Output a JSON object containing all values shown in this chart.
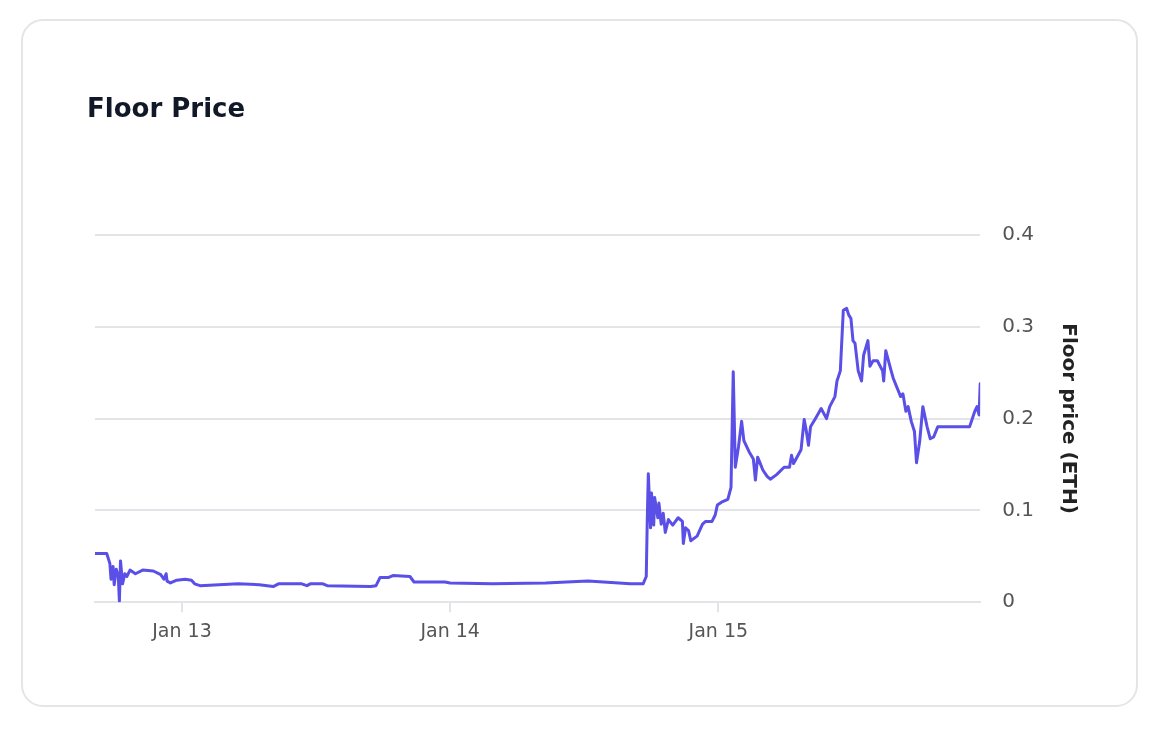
{
  "chart_data": {
    "type": "line",
    "title": "Floor Price",
    "ylabel": "Floor price (ETH)",
    "x": [
      "--01-12T16:13",
      "--01-12T17:16",
      "--01-12T17:33",
      "--01-12T17:39",
      "--01-12T17:50",
      "--01-12T17:56",
      "--01-12T18:07",
      "--01-12T18:18",
      "--01-12T18:24",
      "--01-12T18:30",
      "--01-12T18:41",
      "--01-12T18:53",
      "--01-12T19:04",
      "--01-12T19:21",
      "--01-12T19:50",
      "--01-12T20:29",
      "--01-12T21:26",
      "--01-12T22:06",
      "--01-12T22:23",
      "--01-12T22:35",
      "--01-12T22:40",
      "--01-12T22:58",
      "--01-12T23:32",
      "--01-13T00:17",
      "--01-13T00:51",
      "--01-13T01:08",
      "--01-13T01:37",
      "--01-13T05:02",
      "--01-13T06:55",
      "--01-13T08:10",
      "--01-13T08:38",
      "--01-13T10:43",
      "--01-13T11:11",
      "--01-13T11:29",
      "--01-13T12:37",
      "--01-13T13:00",
      "--01-13T16:53",
      "--01-13T17:22",
      "--01-13T17:44",
      "--01-13T18:30",
      "--01-13T18:53",
      "--01-13T20:24",
      "--01-13T20:46",
      "--01-13T23:32",
      "--01-14T00:00",
      "--01-14T03:47",
      "--01-14T08:32",
      "--01-14T12:20",
      "--01-14T16:08",
      "--01-14T17:16",
      "--01-14T17:33",
      "--01-14T17:38",
      "--01-14T17:44",
      "--01-14T17:56",
      "--01-14T18:01",
      "--01-14T18:13",
      "--01-14T18:18",
      "--01-14T18:35",
      "--01-14T18:41",
      "--01-14T18:53",
      "--01-14T19:04",
      "--01-14T19:15",
      "--01-14T19:32",
      "--01-14T19:55",
      "--01-14T20:24",
      "--01-14T20:47",
      "--01-14T20:52",
      "--01-14T21:04",
      "--01-14T21:20",
      "--01-14T21:32",
      "--01-14T22:06",
      "--01-14T22:35",
      "--01-14T22:52",
      "--01-14T23:26",
      "--01-14T23:43",
      "--01-14T23:55",
      "--01-15T00:17",
      "--01-15T00:51",
      "--01-15T01:08",
      "--01-15T01:20",
      "--01-15T01:31",
      "--01-15T01:48",
      "--01-15T02:05",
      "--01-15T02:17",
      "--01-15T02:45",
      "--01-15T03:08",
      "--01-15T03:19",
      "--01-15T03:31",
      "--01-15T03:59",
      "--01-15T04:22",
      "--01-15T04:39",
      "--01-15T05:13",
      "--01-15T05:53",
      "--01-15T06:22",
      "--01-15T06:33",
      "--01-15T06:44",
      "--01-15T07:24",
      "--01-15T07:41",
      "--01-15T07:52",
      "--01-15T08:04",
      "--01-15T08:15",
      "--01-15T08:44",
      "--01-15T09:12",
      "--01-15T09:41",
      "--01-15T09:58",
      "--01-15T10:26",
      "--01-15T10:37",
      "--01-15T10:55",
      "--01-15T11:11",
      "--01-15T11:29",
      "--01-15T11:40",
      "--01-15T11:52",
      "--01-15T12:03",
      "--01-15T12:14",
      "--01-15T12:31",
      "--01-15T12:49",
      "--01-15T13:00",
      "--01-15T13:23",
      "--01-15T13:34",
      "--01-15T13:51",
      "--01-15T14:14",
      "--01-15T14:42",
      "--01-15T14:48",
      "--01-15T14:59",
      "--01-15T15:28",
      "--01-15T15:39",
      "--01-15T16:19",
      "--01-15T16:31",
      "--01-15T16:47",
      "--01-15T16:59",
      "--01-15T17:16",
      "--01-15T17:33",
      "--01-15T17:44",
      "--01-15T18:01",
      "--01-15T18:18",
      "--01-15T18:41",
      "--01-15T18:58",
      "--01-15T19:16",
      "--01-15T19:38",
      "--01-15T22:29",
      "--01-15T22:57",
      "--01-15T23:09",
      "--01-15T23:20",
      "--01-15T23:26"
    ],
    "series": [
      {
        "color": "#5a4fe6",
        "values": [
          0.053,
          0.053,
          0.042,
          0.025,
          0.039,
          0.019,
          0.036,
          0.028,
          0.001,
          0.045,
          0.02,
          0.031,
          0.028,
          0.035,
          0.031,
          0.035,
          0.034,
          0.03,
          0.025,
          0.031,
          0.023,
          0.021,
          0.024,
          0.025,
          0.024,
          0.02,
          0.018,
          0.02,
          0.019,
          0.017,
          0.02,
          0.02,
          0.018,
          0.02,
          0.02,
          0.018,
          0.017,
          0.018,
          0.027,
          0.027,
          0.029,
          0.028,
          0.022,
          0.022,
          0.021,
          0.02,
          0.021,
          0.023,
          0.02,
          0.02,
          0.028,
          0.086,
          0.14,
          0.081,
          0.119,
          0.084,
          0.114,
          0.092,
          0.108,
          0.085,
          0.097,
          0.076,
          0.09,
          0.084,
          0.092,
          0.088,
          0.064,
          0.081,
          0.078,
          0.067,
          0.072,
          0.085,
          0.088,
          0.088,
          0.095,
          0.106,
          0.109,
          0.112,
          0.125,
          0.251,
          0.147,
          0.169,
          0.197,
          0.176,
          0.164,
          0.156,
          0.133,
          0.158,
          0.144,
          0.137,
          0.134,
          0.139,
          0.147,
          0.147,
          0.16,
          0.151,
          0.166,
          0.199,
          0.187,
          0.171,
          0.191,
          0.201,
          0.211,
          0.2,
          0.213,
          0.224,
          0.241,
          0.252,
          0.318,
          0.32,
          0.313,
          0.309,
          0.285,
          0.282,
          0.252,
          0.241,
          0.269,
          0.285,
          0.257,
          0.263,
          0.263,
          0.252,
          0.241,
          0.274,
          0.252,
          0.244,
          0.224,
          0.227,
          0.208,
          0.213,
          0.197,
          0.186,
          0.152,
          0.175,
          0.213,
          0.191,
          0.178,
          0.18,
          0.191,
          0.191,
          0.208,
          0.213,
          0.204,
          0.238
        ]
      }
    ],
    "xlim": [
      "--01-12T16:13",
      "--01-15T23:26"
    ],
    "xticks": [
      {
        "value": "--01-13",
        "label": "Jan 13"
      },
      {
        "value": "--01-14",
        "label": "Jan 14"
      },
      {
        "value": "--01-15",
        "label": "Jan 15"
      }
    ],
    "ylim": [
      0,
      0.4
    ],
    "yticks": [
      0,
      0.1,
      0.2,
      0.3,
      0.4
    ],
    "grid": "y",
    "legend": false,
    "marker": "none",
    "line_style": "solid"
  }
}
